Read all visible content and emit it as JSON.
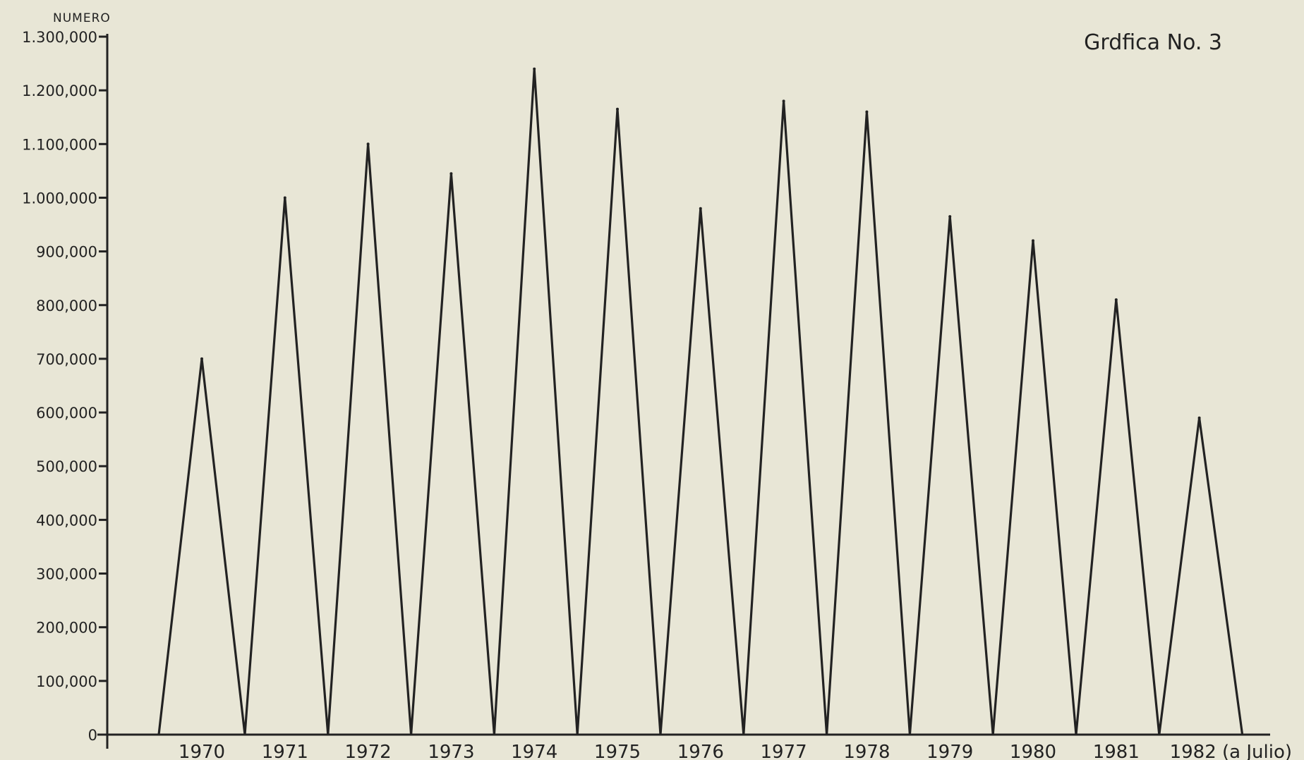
{
  "chart_data": {
    "type": "line",
    "title": "Grdfica No. 3",
    "xlabel": "",
    "ylabel": "NUMERO",
    "ylim": [
      0,
      1300000
    ],
    "yticks": [
      0,
      100000,
      200000,
      300000,
      400000,
      500000,
      600000,
      700000,
      800000,
      900000,
      1000000,
      1100000,
      1200000,
      1300000
    ],
    "ytick_labels": [
      "0",
      "100,000",
      "200,000",
      "300,000",
      "400,000",
      "500,000",
      "600,000",
      "700,000",
      "800,000",
      "900,000",
      "1.000,000",
      "1.100,000",
      "1.200,000",
      "1.300,000"
    ],
    "categories": [
      "1970",
      "1971",
      "1972",
      "1973",
      "1974",
      "1975",
      "1976",
      "1977",
      "1978",
      "1979",
      "1980",
      "1981",
      "1982 (a Julio)"
    ],
    "series": [
      {
        "values": [
          700000,
          1000000,
          1100000,
          1045000,
          1240000,
          1165000,
          980000,
          1180000,
          1160000,
          965000,
          920000,
          810000,
          590000
        ]
      }
    ],
    "grid": false,
    "line_color": "#222222",
    "background_color": "#e8e6d6"
  }
}
